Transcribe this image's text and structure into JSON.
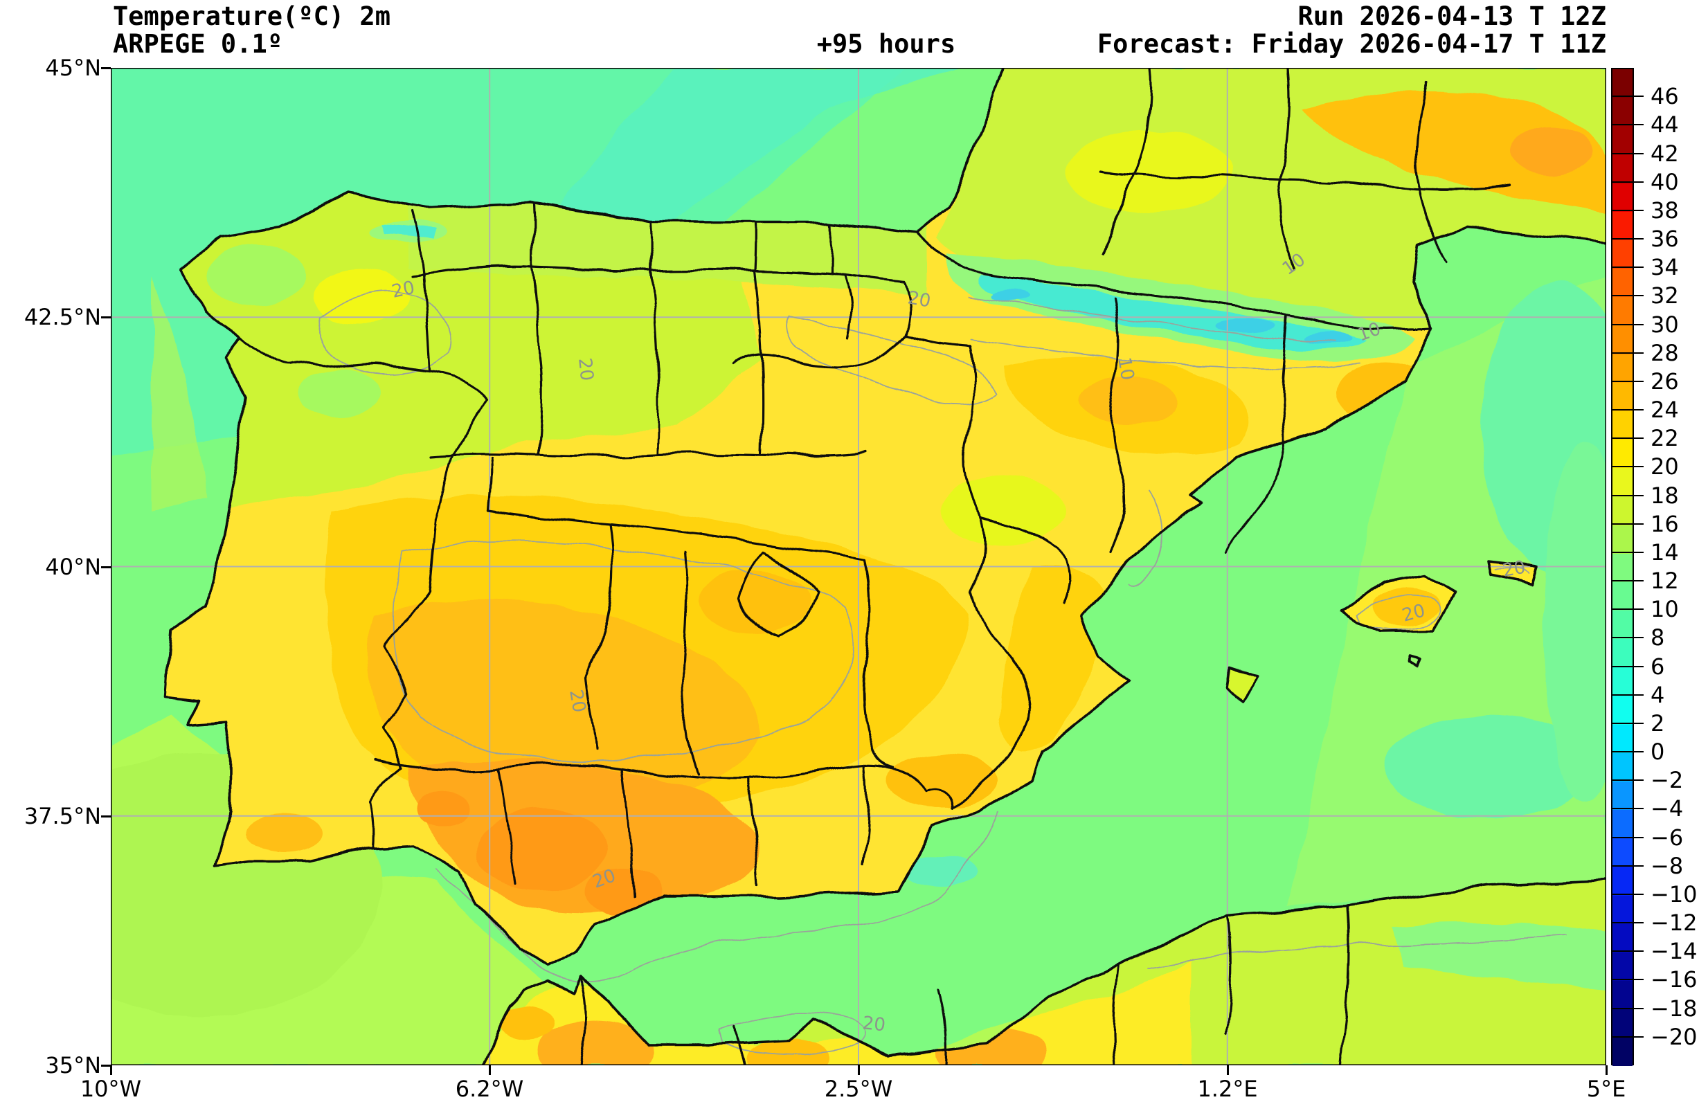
{
  "header": {
    "title_line1": "Temperature(ºC) 2m",
    "title_line2": "ARPEGE 0.1º",
    "forecast_hour": "+95 hours",
    "run_line": "Run 2026-04-13 T 12Z",
    "forecast_line": "Forecast: Friday 2026-04-17 T 11Z"
  },
  "map": {
    "y_axis": {
      "ticks": [
        "45°N",
        "42.5°N",
        "40°N",
        "37.5°N",
        "35°N"
      ]
    },
    "x_axis": {
      "ticks": [
        "10°W",
        "6.2°W",
        "2.5°W",
        "1.2°E",
        "5°E"
      ]
    },
    "contour_labels": {
      "twenty": "20",
      "ten": "10"
    },
    "palette": {
      "sea_green": "#7efa80",
      "sea_teal": "#64f6a8",
      "sea_south_yellowgreen": "#b3fa55",
      "land_yellow": "#ffe431",
      "land_gold": "#ffd30b",
      "land_amber": "#ffbf12",
      "land_orange": "#ffa91d",
      "land_deep_orange": "#ff9a18",
      "mountain_cyan": "#47ead2",
      "gridline_gray": "#b0b0b0",
      "boundary_black": "#0b0b0b",
      "contour_gray": "#9aa39b"
    }
  },
  "colorbar": {
    "tick_values": [
      "46",
      "44",
      "42",
      "40",
      "38",
      "36",
      "34",
      "32",
      "30",
      "28",
      "26",
      "24",
      "22",
      "20",
      "18",
      "16",
      "14",
      "12",
      "10",
      "8",
      "6",
      "4",
      "2",
      "0",
      "−2",
      "−4",
      "−6",
      "−8",
      "−10",
      "−12",
      "−14",
      "−16",
      "−18",
      "−20"
    ],
    "band_colors": [
      "#7b0000",
      "#8b0000",
      "#a20000",
      "#c00000",
      "#e00000",
      "#fa1a00",
      "#ff4000",
      "#ff6300",
      "#ff7b00",
      "#ff8f00",
      "#ffa400",
      "#ffb900",
      "#ffd200",
      "#ffea00",
      "#e9f71d",
      "#cdf62e",
      "#abf64b",
      "#7ffa7f",
      "#68fb91",
      "#52fca5",
      "#3cfdbd",
      "#27fed7",
      "#11feef",
      "#00e9fe",
      "#00c5fe",
      "#0a96ff",
      "#0c6cff",
      "#0d4bff",
      "#0628f5",
      "#0517dc",
      "#040bc1",
      "#0307a8",
      "#020490",
      "#010379",
      "#010264"
    ]
  }
}
